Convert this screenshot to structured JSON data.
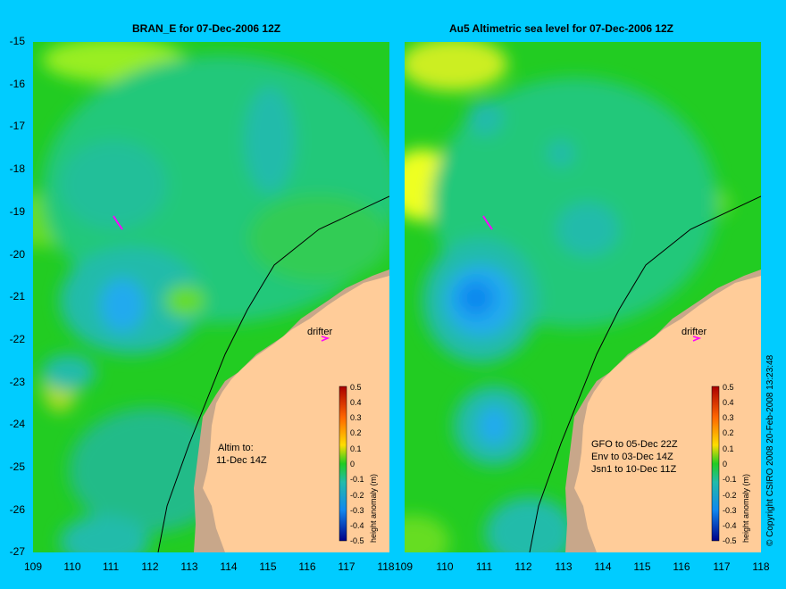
{
  "left_panel": {
    "title": "BRAN_E for 07-Dec-2006 12Z",
    "altim_label": [
      "Altim to:",
      "11-Dec 14Z"
    ],
    "drifter_label": "drifter"
  },
  "right_panel": {
    "title": "Au5 Altimetric sea level  for 07-Dec-2006 12Z",
    "info_lines": [
      "GFO to 05-Dec 22Z",
      "Env to 03-Dec 14Z",
      "Jsn1 to 10-Dec 11Z"
    ],
    "drifter_label": "drifter"
  },
  "axes": {
    "lat_ticks": [
      "-15",
      "-16",
      "-17",
      "-18",
      "-19",
      "-20",
      "-21",
      "-22",
      "-23",
      "-24",
      "-25",
      "-26",
      "-27"
    ],
    "lon_ticks_left": [
      "109",
      "110",
      "111",
      "112",
      "113",
      "114",
      "115",
      "116",
      "117",
      "118"
    ],
    "lon_ticks_right": [
      "110",
      "111",
      "112",
      "113",
      "114",
      "115",
      "116",
      "117",
      "118"
    ]
  },
  "colorbar": {
    "label": "height anomaly (m)",
    "ticks": [
      "0.5",
      "0.4",
      "0.3",
      "0.2",
      "0.1",
      "0",
      "-0.1",
      "-0.2",
      "-0.3",
      "-0.4",
      "-0.5"
    ]
  },
  "copyright": "© Copyright CSIRO 2008    20-Feb-2008 13:23:48",
  "colors": {
    "background": "#00ccff",
    "land": "#ffcc99",
    "shelf": "#c8a78a",
    "ocean_base": "#22cc22",
    "drifter": "#ff00ff"
  }
}
